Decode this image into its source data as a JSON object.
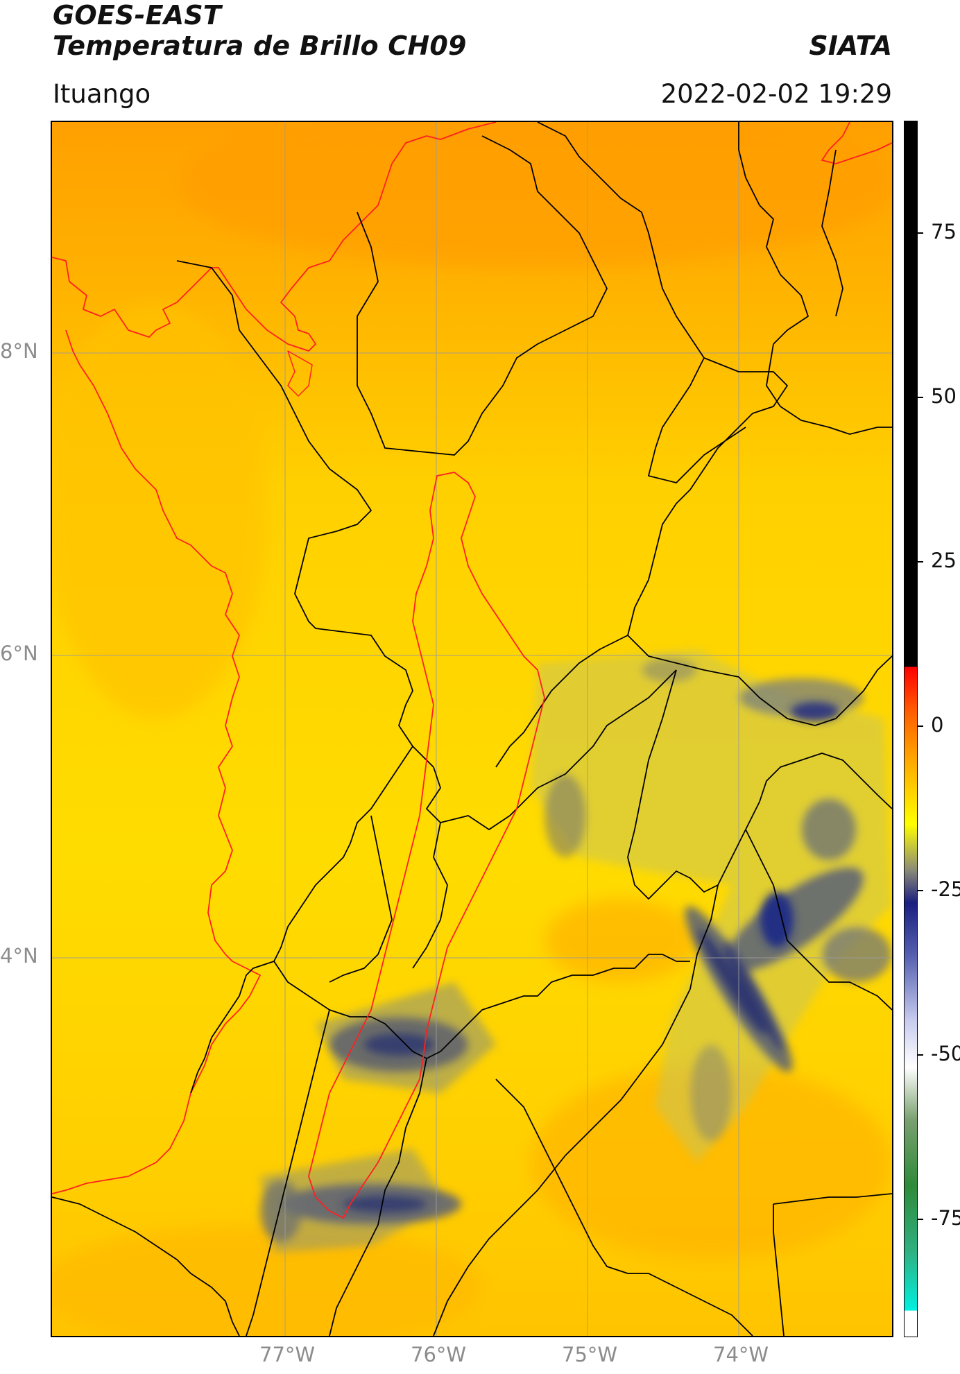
{
  "header": {
    "title_line1": "GOES-EAST",
    "title_line2": "Temperatura de Brillo CH09",
    "brand": "SIATA",
    "region": "Ituango",
    "timestamp": "2022-02-02 19:29"
  },
  "map": {
    "lat_labels": [
      "8°N",
      "6°N",
      "4°N"
    ],
    "lon_labels": [
      "77°W",
      "76°W",
      "75°W",
      "74°W"
    ],
    "colors": {
      "warm_base": "#ffd400",
      "orange": "#ffa000",
      "cloud_gray": "#8a8a78",
      "cloud_navy": "#2a3070",
      "coastline": "#ff2020",
      "borders": "#000000",
      "gridlines": "#9a9a9a"
    }
  },
  "colorbar": {
    "tick_labels": [
      "75",
      "50",
      "25",
      "0",
      "-25",
      "-50",
      "-75"
    ],
    "tick_values": [
      75,
      50,
      25,
      0,
      -25,
      -50,
      -75
    ],
    "range": [
      -93,
      92
    ],
    "stops": [
      {
        "value": 92,
        "color": "#000000"
      },
      {
        "value": 9,
        "color": "#000000"
      },
      {
        "value": 8.9,
        "color": "#ff0000"
      },
      {
        "value": 2,
        "color": "#ff6000"
      },
      {
        "value": -5,
        "color": "#ffa500"
      },
      {
        "value": -15,
        "color": "#ffff00"
      },
      {
        "value": -22,
        "color": "#8a8a78"
      },
      {
        "value": -27,
        "color": "#1a1f80"
      },
      {
        "value": -35,
        "color": "#5560b0"
      },
      {
        "value": -45,
        "color": "#c8ccee"
      },
      {
        "value": -52,
        "color": "#ffffff"
      },
      {
        "value": -60,
        "color": "#7aa070"
      },
      {
        "value": -70,
        "color": "#2f8a3a"
      },
      {
        "value": -80,
        "color": "#30b080"
      },
      {
        "value": -89,
        "color": "#00f0e0"
      },
      {
        "value": -89.1,
        "color": "#ffffff"
      },
      {
        "value": -93,
        "color": "#ffffff"
      }
    ]
  }
}
